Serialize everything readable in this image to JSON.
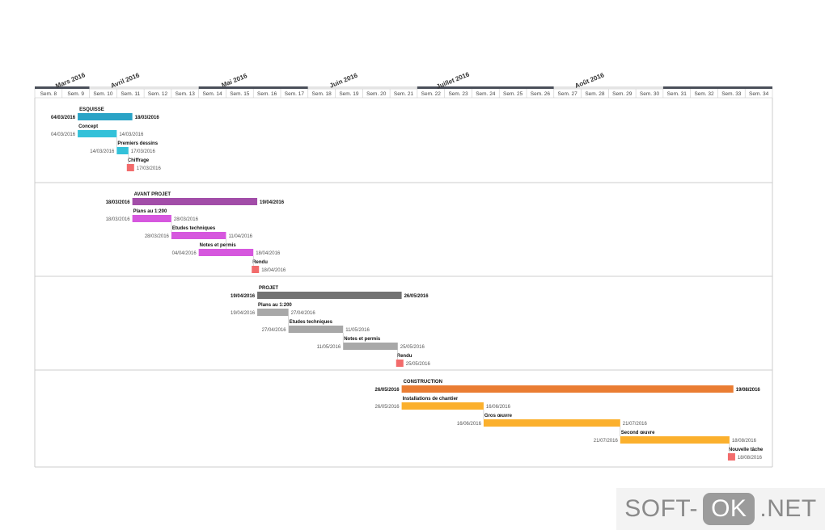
{
  "chart_data": {
    "type": "gantt",
    "title": "",
    "timeline": {
      "start_date": "2016-02-22",
      "months": [
        {
          "label": "Mars 2016",
          "start_week": "Sem. 8",
          "end_week": "Sem. 9",
          "style": "dark"
        },
        {
          "label": "Avril 2016",
          "start_week": "Sem. 10",
          "end_week": "Sem. 13",
          "style": "light"
        },
        {
          "label": "Mai 2016",
          "start_week": "Sem. 14",
          "end_week": "Sem. 17",
          "style": "dark"
        },
        {
          "label": "Juin 2016",
          "start_week": "Sem. 18",
          "end_week": "Sem. 22",
          "style": "light"
        },
        {
          "label": "Juillet 2016",
          "start_week": "Sem. 22",
          "end_week": "Sem. 26",
          "style": "dark"
        },
        {
          "label": "Août 2016",
          "start_week": "Sem. 27",
          "end_week": "Sem. 30",
          "style": "light"
        },
        {
          "label": "",
          "start_week": "Sem. 31",
          "end_week": "Sem. 34",
          "style": "dark"
        }
      ],
      "weeks": [
        "Sem. 8",
        "Sem. 9",
        "Sem. 10",
        "Sem. 11",
        "Sem. 12",
        "Sem. 13",
        "Sem. 14",
        "Sem. 15",
        "Sem. 16",
        "Sem. 17",
        "Sem. 18",
        "Sem. 19",
        "Sem. 20",
        "Sem. 21",
        "Sem. 22",
        "Sem. 23",
        "Sem. 24",
        "Sem. 25",
        "Sem. 26",
        "Sem. 27",
        "Sem. 28",
        "Sem. 29",
        "Sem. 30",
        "Sem. 31",
        "Sem. 32",
        "Sem. 33",
        "Sem. 34"
      ]
    },
    "groups": [
      {
        "name": "ESQUISSE",
        "start": "04/03/2016",
        "end": "18/03/2016",
        "color": "#2aa3c6",
        "tasks": [
          {
            "name": "Concept",
            "start": "04/03/2016",
            "end": "14/03/2016",
            "color": "#33c1d9"
          },
          {
            "name": "Premiers dessins",
            "start": "14/03/2016",
            "end": "17/03/2016",
            "color": "#33c1d9"
          },
          {
            "name": "Chiffrage",
            "start": "17/03/2016",
            "end": "17/03/2016",
            "color": "#f26b6b",
            "milestone": true
          }
        ]
      },
      {
        "name": "AVANT PROJET",
        "start": "18/03/2016",
        "end": "19/04/2016",
        "color": "#a24da8",
        "tasks": [
          {
            "name": "Plans au 1:200",
            "start": "18/03/2016",
            "end": "28/03/2016",
            "color": "#d657de"
          },
          {
            "name": "Etudes techniques",
            "start": "28/03/2016",
            "end": "11/04/2016",
            "color": "#d657de"
          },
          {
            "name": "Notes et permis",
            "start": "04/04/2016",
            "end": "18/04/2016",
            "color": "#d657de"
          },
          {
            "name": "Rendu",
            "start": "18/04/2016",
            "end": "18/04/2016",
            "color": "#f26b6b",
            "milestone": true
          }
        ]
      },
      {
        "name": "PROJET",
        "start": "19/04/2016",
        "end": "26/05/2016",
        "color": "#737373",
        "tasks": [
          {
            "name": "Plans au 1:200",
            "start": "19/04/2016",
            "end": "27/04/2016",
            "color": "#a8a8a8"
          },
          {
            "name": "Etudes techniques",
            "start": "27/04/2016",
            "end": "11/05/2016",
            "color": "#a8a8a8"
          },
          {
            "name": "Notes et permis",
            "start": "11/05/2016",
            "end": "25/05/2016",
            "color": "#a8a8a8"
          },
          {
            "name": "Rendu",
            "start": "25/05/2016",
            "end": "25/05/2016",
            "color": "#f26b6b",
            "milestone": true
          }
        ]
      },
      {
        "name": "CONSTRUCTION",
        "start": "26/05/2016",
        "end": "19/08/2016",
        "color": "#ea7d33",
        "tasks": [
          {
            "name": "Installations de chantier",
            "start": "26/05/2016",
            "end": "16/06/2016",
            "color": "#fbb02d"
          },
          {
            "name": "Gros œuvre",
            "start": "16/06/2016",
            "end": "21/07/2016",
            "color": "#fbb02d"
          },
          {
            "name": "Second œuvre",
            "start": "21/07/2016",
            "end": "18/08/2016",
            "color": "#fbb02d"
          },
          {
            "name": "Nouvelle tâche",
            "start": "18/08/2016",
            "end": "18/08/2016",
            "color": "#f26b6b",
            "milestone": true
          }
        ]
      }
    ]
  },
  "watermark": {
    "left": "SOFT-",
    "middle": "OK",
    "right": ".NET"
  }
}
